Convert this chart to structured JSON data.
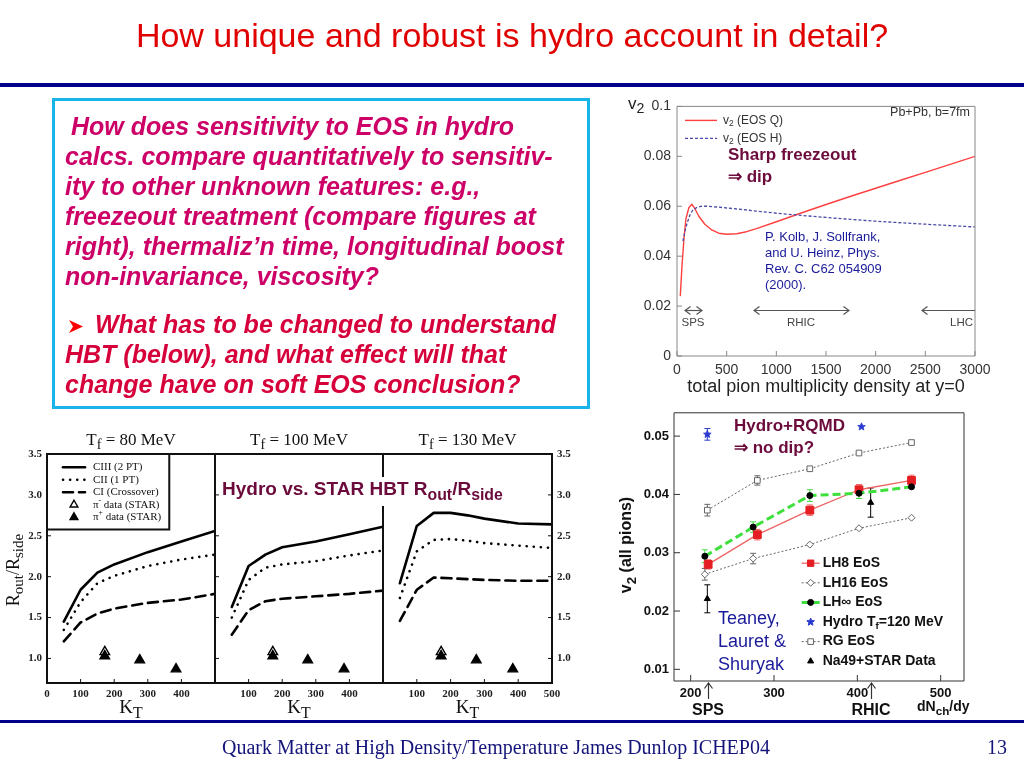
{
  "chart_data": [
    {
      "type": "other",
      "title": "How unique and robust is hydro account in detail?",
      "annotations": [
        "How does sensitivity to EOS in hydro calcs. compare quantitatively to sensitiv-ity to other unknown features: e.g., freezeout treatment (compare figures at right), thermaliz’n time, longitudinal boost non-invariance, viscosity?",
        "What has to be changed to understand HBT (below), and what effect will that change have on soft EOS conclusion?",
        "Quark Matter at High Density/Temperature James Dunlop ICHEP04",
        "13"
      ]
    },
    {
      "type": "line",
      "xlabel": "total pion multiplicity density at y=0",
      "ylabel": "v$_{2}$",
      "xlim": [
        0,
        3000
      ],
      "xticks": [
        0,
        500,
        1000,
        1500,
        2000,
        2500,
        3000
      ],
      "ylim": [
        0,
        0.1
      ],
      "yticks": [
        0,
        0.02,
        0.04,
        0.06,
        0.08,
        0.1
      ],
      "legend": "top left",
      "series": [
        {
          "name": "v$_{2}$ (EOS Q)",
          "color": "#ff4040",
          "line_style": "solid",
          "x": [
            33,
            50,
            70,
            90,
            120,
            150,
            180,
            220,
            280,
            350,
            420,
            500,
            600,
            700,
            800,
            1000,
            1250,
            1500,
            1750,
            2000,
            2250,
            2500,
            2750,
            3000
          ],
          "values": [
            0.024,
            0.036,
            0.047,
            0.055,
            0.0595,
            0.0608,
            0.059,
            0.056,
            0.0528,
            0.0505,
            0.0492,
            0.0488,
            0.049,
            0.0498,
            0.051,
            0.0538,
            0.0573,
            0.0607,
            0.064,
            0.0672,
            0.0704,
            0.0736,
            0.0768,
            0.08
          ]
        },
        {
          "name": "v$_{2}$ (EOS H)",
          "color": "#4a4aa8",
          "line_style": "dashed",
          "x": [
            60,
            80,
            100,
            130,
            160,
            200,
            250,
            300,
            400,
            500,
            700,
            1000,
            1500,
            2000,
            2500,
            3000
          ],
          "values": [
            0.046,
            0.05,
            0.053,
            0.0565,
            0.0585,
            0.0595,
            0.06,
            0.06,
            0.0597,
            0.0593,
            0.0585,
            0.0572,
            0.0555,
            0.054,
            0.0528,
            0.0517
          ]
        }
      ],
      "annotations": [
        "Pb+Pb, b=7fm",
        "Sharp freezeout ⇒ dip",
        "P. Kolb, J. Sollfrank, and U. Heinz, Phys. Rev. C. C62 054909 (2000).",
        "SPS",
        "RHIC",
        "LHC"
      ]
    },
    {
      "type": "line",
      "title": "T$_{f}$ = 80 MeV",
      "xlabel": "K$_{T}$",
      "ylabel": "R$_{out}$/R$_{side}$",
      "xlim": [
        0,
        500
      ],
      "xticks": [
        0,
        100,
        200,
        300,
        400
      ],
      "ylim": [
        0.7,
        3.5
      ],
      "yticks": [
        {
          "value": 1,
          "label": "1.0"
        },
        1.5,
        {
          "value": 2,
          "label": "2.0"
        },
        2.5,
        {
          "value": 3,
          "label": "3.0"
        },
        3.5
      ],
      "legend": "top left",
      "x": [
        50,
        100,
        150,
        200,
        300,
        400,
        500
      ],
      "series": [
        {
          "name": "CIII (2 PT)",
          "color": "#000000",
          "line_style": "solid",
          "values": [
            1.45,
            1.84,
            2.05,
            2.15,
            2.3,
            2.43,
            2.56
          ]
        },
        {
          "name": "CII (1 PT)",
          "color": "#000000",
          "line_style": "dotted",
          "values": [
            1.35,
            1.69,
            1.92,
            2.01,
            2.13,
            2.21,
            2.27
          ]
        },
        {
          "name": "CI (Crossover)",
          "color": "#000000",
          "line_style": "dashed",
          "values": [
            1.21,
            1.44,
            1.55,
            1.61,
            1.68,
            1.72,
            1.79
          ]
        },
        {
          "name": "π$^{-}$ data (STAR)",
          "type": "scatter",
          "marker": "triangle",
          "color": "#000000",
          "x": [
            172
          ],
          "values": [
            1.08
          ]
        },
        {
          "name": "π$^{+}$ data (STAR)",
          "type": "scatter",
          "marker": "triangle",
          "color": "#000000",
          "x": [
            172,
            276,
            384
          ],
          "values": [
            1.03,
            0.98,
            0.87
          ]
        }
      ]
    },
    {
      "type": "line",
      "title": "T$_{f}$ = 100 MeV",
      "xlabel": "K$_{T}$",
      "xlim": [
        0,
        500
      ],
      "xticks": [
        100,
        200,
        300,
        400
      ],
      "ylim": [
        0.7,
        3.5
      ],
      "yticks": [
        {
          "value": 1,
          "label": null
        },
        {
          "value": 1.5,
          "label": null
        },
        {
          "value": 2,
          "label": null
        },
        {
          "value": 2.5,
          "label": null
        },
        {
          "value": 3,
          "label": null
        }
      ],
      "tick_labels": "x",
      "x": [
        50,
        100,
        150,
        200,
        300,
        400,
        500
      ],
      "series": [
        {
          "color": "#000000",
          "line_style": "solid",
          "values": [
            1.63,
            2.13,
            2.27,
            2.36,
            2.43,
            2.52,
            2.61
          ]
        },
        {
          "color": "#000000",
          "line_style": "dotted",
          "values": [
            1.5,
            1.96,
            2.11,
            2.15,
            2.19,
            2.26,
            2.32
          ]
        },
        {
          "color": "#000000",
          "line_style": "dashed",
          "values": [
            1.29,
            1.59,
            1.7,
            1.73,
            1.76,
            1.79,
            1.83
          ]
        },
        {
          "type": "scatter",
          "marker": "triangle",
          "color": "#000000",
          "x": [
            172
          ],
          "values": [
            1.08
          ]
        },
        {
          "type": "scatter",
          "marker": "triangle",
          "color": "#000000",
          "x": [
            172,
            276,
            384
          ],
          "values": [
            1.03,
            0.98,
            0.87
          ]
        }
      ],
      "annotations": [
        "Hydro vs. STAR HBT R$_{out}$/R$_{side}$"
      ]
    },
    {
      "type": "line",
      "title": "T$_{f}$ = 130 MeV",
      "xlabel": "K$_{T}$",
      "xlim": [
        0,
        500
      ],
      "xticks": [
        100,
        200,
        300,
        400,
        500
      ],
      "ylim": [
        0.7,
        3.5
      ],
      "yticks": [
        {
          "value": 1,
          "label": "1.0"
        },
        1.5,
        {
          "value": 2,
          "label": "2.0"
        },
        2.5,
        {
          "value": 3,
          "label": "3.0"
        },
        3.5
      ],
      "x": [
        50,
        100,
        150,
        200,
        250,
        300,
        400,
        500
      ],
      "series": [
        {
          "color": "#000000",
          "line_style": "solid",
          "values": [
            1.92,
            2.62,
            2.78,
            2.78,
            2.75,
            2.71,
            2.65,
            2.64
          ]
        },
        {
          "color": "#000000",
          "line_style": "dotted",
          "values": [
            1.74,
            2.31,
            2.45,
            2.46,
            2.44,
            2.41,
            2.38,
            2.35
          ]
        },
        {
          "color": "#000000",
          "line_style": "dashed",
          "values": [
            1.46,
            1.84,
            1.99,
            1.98,
            1.97,
            1.96,
            1.95,
            1.95
          ]
        },
        {
          "type": "scatter",
          "marker": "triangle",
          "color": "#000000",
          "x": [
            172
          ],
          "values": [
            1.08
          ]
        },
        {
          "type": "scatter",
          "marker": "triangle",
          "color": "#000000",
          "x": [
            172,
            276,
            384
          ],
          "values": [
            1.03,
            0.98,
            0.87
          ]
        }
      ]
    },
    {
      "type": "line",
      "xlabel": "dN$_{ch}$/dy",
      "ylabel": "v$_{2}$ (all pions)",
      "xlim": [
        180,
        528
      ],
      "xticks": [
        200,
        300,
        400,
        500
      ],
      "ylim": [
        0.008,
        0.054
      ],
      "yticks": [
        0.01,
        0.02,
        0.03,
        0.04,
        0.05
      ],
      "legend": "bottom right",
      "series": [
        {
          "name": "LH8 EoS",
          "color": "#ee6464",
          "colors": [
            "#e41e22",
            "#e41e22",
            "#e41e22",
            "#e41e22",
            "#e41e22"
          ],
          "marker": "square",
          "line_style": "solid",
          "x": [
            221,
            280,
            343,
            402,
            465
          ],
          "values": [
            0.028,
            0.0331,
            0.0373,
            0.0408,
            0.0424
          ],
          "errors": [
            0.0008,
            0.0009,
            0.0009,
            0.0009,
            0.0009
          ]
        },
        {
          "name": "LH16 EoS",
          "color": "#666666",
          "marker": "diamond",
          "line_style": "dotted",
          "x": [
            217,
            275,
            343,
            402,
            465
          ],
          "values": [
            0.0263,
            0.029,
            0.0314,
            0.0342,
            0.036
          ],
          "errors": [
            0.001,
            0.0009,
            null,
            null,
            null
          ]
        },
        {
          "name": "LH∞ EoS",
          "color": "#3ee03e",
          "colors": [
            "#000000",
            "#000000",
            "#000000",
            "#000000",
            "#000000"
          ],
          "marker": "circle",
          "line_style": "dashed",
          "x": [
            217,
            275,
            343,
            402,
            465
          ],
          "values": [
            0.0294,
            0.0344,
            0.0398,
            0.0402,
            0.0413
          ],
          "errors": [
            0.0011,
            0.0009,
            0.001,
            0.0009,
            null
          ]
        },
        {
          "name": "Hydro T$_{f}$=120 MeV",
          "type": "scatter",
          "color": "#2a3ad0",
          "marker": "star",
          "x": [
            220,
            405
          ],
          "values": [
            0.0503,
            0.0516
          ],
          "errors": [
            0.001,
            null
          ]
        },
        {
          "name": "RG EoS",
          "color": "#666666",
          "marker": "square",
          "line_style": "dotted",
          "x": [
            220,
            280,
            343,
            402,
            465
          ],
          "values": [
            0.0373,
            0.0424,
            0.0444,
            0.0471,
            0.0489
          ],
          "errors": [
            0.001,
            0.0008,
            null,
            null,
            null
          ]
        },
        {
          "name": "Na49+STAR Data",
          "type": "scatter",
          "color": "#000000",
          "marker": "triangle",
          "x": [
            220,
            416
          ],
          "values": [
            0.0221,
            0.0386
          ],
          "errors": [
            0.0024,
            0.0025
          ]
        }
      ],
      "annotations": [
        "Hydro+RQMD ⇒ no dip?",
        "Teaney, Lauret & Shuryak",
        "SPS",
        "RHIC"
      ]
    }
  ]
}
